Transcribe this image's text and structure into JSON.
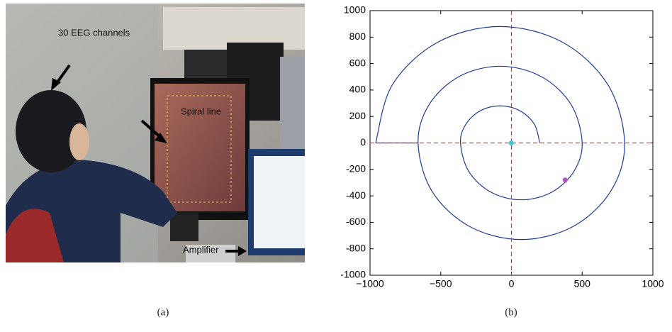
{
  "photo": {
    "labels": [
      "30 EEG channels",
      "Spiral line",
      "Amplifier"
    ],
    "caption": "(a)"
  },
  "chart_data": {
    "type": "line",
    "caption": "(b)",
    "xlim": [
      -1000,
      1000
    ],
    "xticks": [
      {
        "value": -1000,
        "label": "−1000"
      },
      {
        "value": -500,
        "label": "−500"
      },
      0,
      500,
      1000
    ],
    "ylim": [
      -1000,
      1000
    ],
    "yticks": [
      -1000,
      -800,
      -600,
      -400,
      -200,
      0,
      200,
      400,
      600,
      800,
      1000
    ],
    "series": [
      {
        "color": "#1f3a93",
        "smooth": true,
        "x": [
          200,
          163,
          60,
          -80,
          -220,
          -323,
          -360,
          -302,
          -145,
          70,
          285,
          442,
          500,
          422,
          210,
          -80,
          -370,
          -582,
          -660,
          -562,
          -295,
          70,
          435,
          702,
          800,
          682,
          360,
          -80,
          -520,
          -842,
          -960
        ],
        "values": [
          0,
          140,
          243,
          280,
          243,
          140,
          0,
          -215,
          -372,
          -430,
          -372,
          -215,
          0,
          290,
          502,
          580,
          502,
          290,
          0,
          -365,
          -632,
          -730,
          -632,
          -365,
          0,
          440,
          762,
          880,
          762,
          440,
          0
        ]
      },
      {
        "color": "#1f3a93",
        "smooth": false,
        "x": [
          -960,
          -660
        ],
        "values": [
          0,
          0
        ]
      }
    ],
    "reference_lines": {
      "x": 0,
      "y": 0,
      "color": "#e0383b"
    },
    "points": [
      {
        "x": 0,
        "y": 0,
        "color": "#49c3cf"
      },
      {
        "x": 380,
        "y": -280,
        "color": "#b052c4"
      }
    ]
  }
}
